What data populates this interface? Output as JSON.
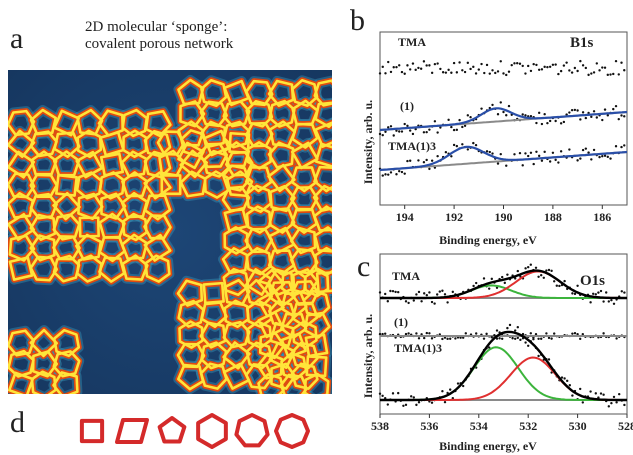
{
  "panel_letters": {
    "a": "a",
    "b": "b",
    "c": "c",
    "d": "d"
  },
  "panel_a": {
    "caption_line1": "2D molecular ‘sponge’:",
    "caption_line2": "covalent porous network",
    "colors": {
      "background": "#1a3f6e",
      "network_outer": "#e04a10",
      "network_inner": "#ffe53a"
    }
  },
  "panel_d": {
    "shapes": [
      {
        "sides": 4,
        "name": "square"
      },
      {
        "sides": 4,
        "name": "rhombus"
      },
      {
        "sides": 5,
        "name": "pentagon"
      },
      {
        "sides": 6,
        "name": "hexagon"
      },
      {
        "sides": 7,
        "name": "heptagon"
      },
      {
        "sides": 8,
        "name": "octagon"
      }
    ],
    "color": "#d42a2a"
  },
  "chart_data": [
    {
      "type": "scatter",
      "panel": "b",
      "title": "B1s",
      "xlabel": "Binding energy, eV",
      "ylabel": "Intensity, arb. u.",
      "xlim": [
        195,
        185
      ],
      "x_ticks": [
        194,
        192,
        190,
        188,
        186
      ],
      "series": [
        {
          "name": "TMA",
          "offset": 2.0,
          "baseline": [
            0,
            0
          ],
          "peaks": []
        },
        {
          "name": "(1)",
          "offset": 1.0,
          "baseline": [
            0.0,
            0.3
          ],
          "peaks": [
            {
              "center": 190.3,
              "height": 0.22,
              "width": 0.6
            }
          ]
        },
        {
          "name": "TMA(1)3",
          "offset": 0.0,
          "baseline": [
            0.0,
            0.3
          ],
          "peaks": [
            {
              "center": 191.5,
              "height": 0.28,
              "width": 0.7
            }
          ]
        }
      ],
      "colors": {
        "fit": "#2a4fa8",
        "background": "#8a8a8a",
        "points": "#111111"
      }
    },
    {
      "type": "scatter",
      "panel": "c",
      "title": "O1s",
      "xlabel": "Binding energy, eV",
      "ylabel": "Intensity, arb. u.",
      "xlim": [
        538,
        528
      ],
      "x_ticks": [
        538,
        536,
        534,
        532,
        530,
        528
      ],
      "series": [
        {
          "name": "TMA",
          "offset": 2.0,
          "components": [
            {
              "center": 533.5,
              "height": 0.18,
              "width": 0.8,
              "color": "#3cb43c"
            },
            {
              "center": 531.6,
              "height": 0.38,
              "width": 0.9,
              "color": "#e03030"
            }
          ]
        },
        {
          "name": "(1)",
          "offset": 1.0,
          "components": []
        },
        {
          "name": "TMA(1)3",
          "offset": 0.0,
          "components": [
            {
              "center": 533.3,
              "height": 0.62,
              "width": 0.9,
              "color": "#3cb43c"
            },
            {
              "center": 531.8,
              "height": 0.5,
              "width": 0.9,
              "color": "#e03030"
            }
          ]
        }
      ],
      "colors": {
        "envelope": "#000000",
        "background": "#8a8a8a",
        "points": "#111111"
      }
    }
  ]
}
